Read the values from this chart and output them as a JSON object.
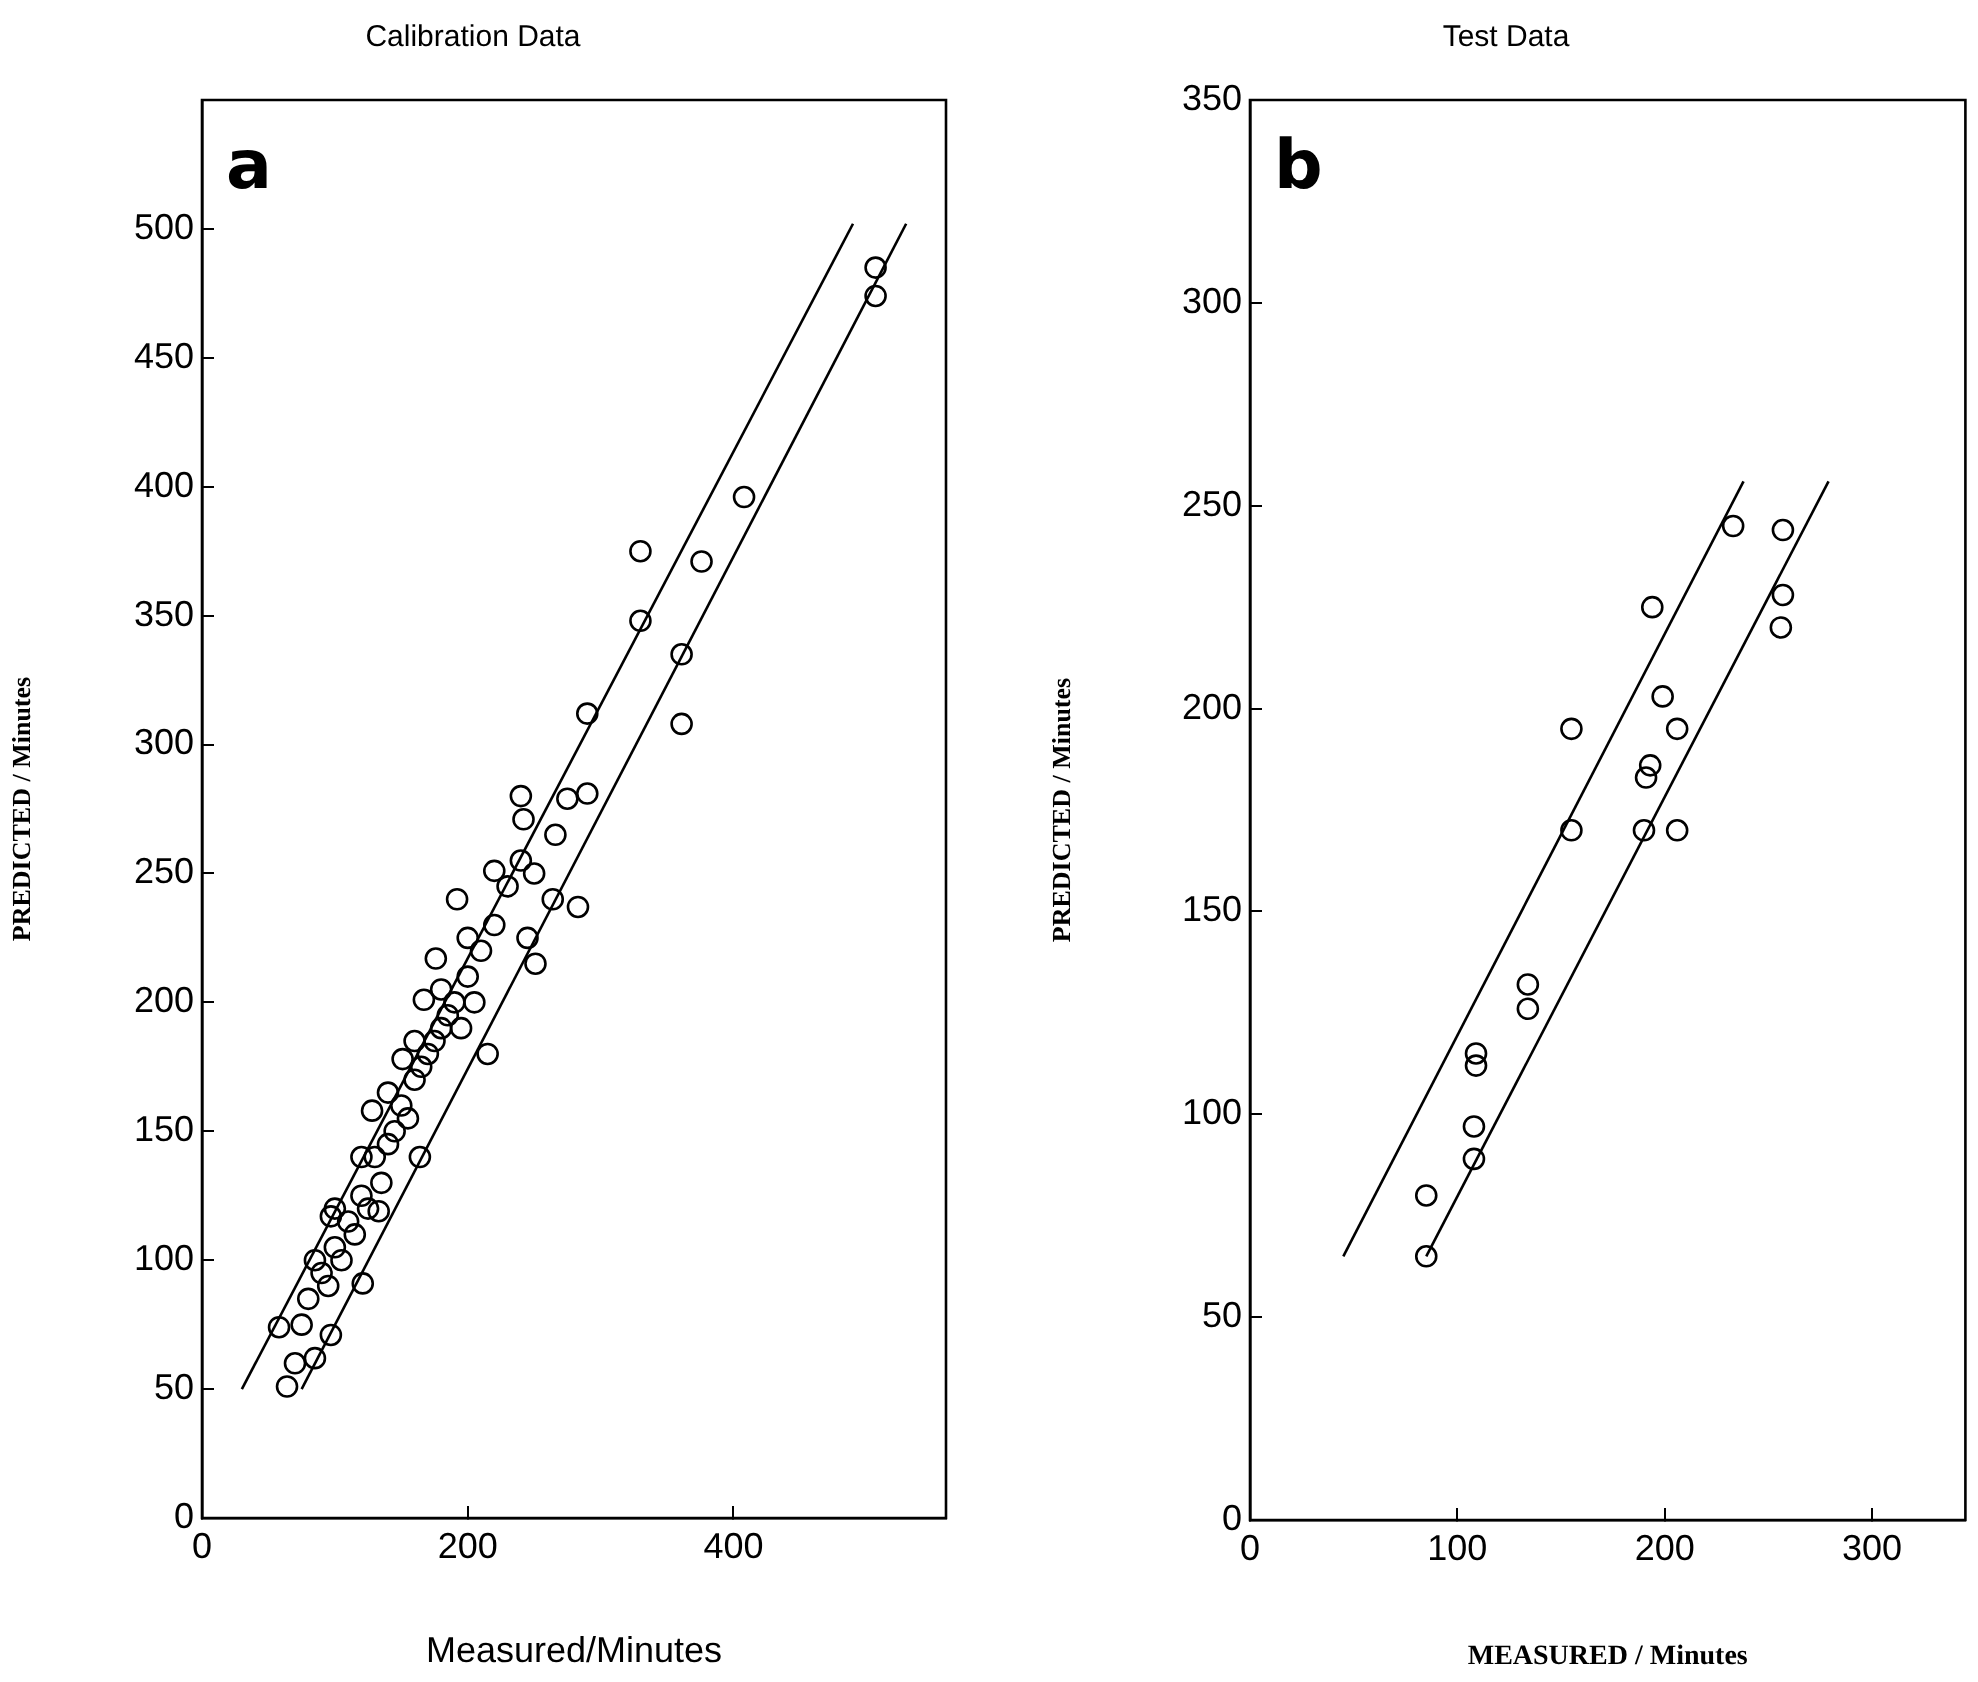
{
  "chart_data": [
    {
      "type": "scatter",
      "title": "Calibration Data",
      "xlabel": "Measured/Minutes",
      "ylabel": "PREDICTED / Minutes",
      "annotations": [
        "a"
      ],
      "xlim": [
        0,
        560
      ],
      "ylim": [
        0,
        550
      ],
      "xticks": [
        0,
        200,
        400
      ],
      "yticks": [
        0,
        50,
        100,
        150,
        200,
        250,
        300,
        350,
        400,
        450,
        500
      ],
      "series": [
        {
          "marker": "circle",
          "color": "#000000",
          "x": [
            507,
            507,
            408,
            330,
            376,
            330,
            361,
            361,
            290,
            240,
            290,
            275,
            266,
            242,
            283,
            251,
            264,
            215,
            220,
            192,
            176,
            167,
            151,
            128,
            164,
            121,
            97,
            64,
            70,
            85,
            97,
            58,
            133,
            80,
            90,
            100,
            110,
            120,
            130,
            140,
            150,
            160,
            170,
            180,
            190,
            200,
            210,
            220,
            95,
            105,
            115,
            125,
            135,
            145,
            155,
            165,
            175,
            185,
            195,
            205,
            230,
            240,
            245,
            250,
            85,
            75,
            100,
            120,
            140,
            160,
            180,
            200
          ],
          "values": [
            485,
            474,
            396,
            375,
            371,
            348,
            335,
            308,
            312,
            280,
            281,
            279,
            265,
            271,
            237,
            215,
            240,
            180,
            251,
            240,
            217,
            201,
            178,
            158,
            140,
            91,
            117,
            51,
            60,
            62,
            71,
            74,
            119,
            85,
            95,
            105,
            115,
            125,
            140,
            145,
            160,
            170,
            180,
            190,
            200,
            210,
            220,
            230,
            90,
            100,
            110,
            120,
            130,
            150,
            155,
            175,
            185,
            195,
            190,
            200,
            245,
            255,
            225,
            250,
            100,
            75,
            120,
            140,
            165,
            185,
            205,
            225
          ]
        },
        {
          "type": "line",
          "color": "#000000",
          "x": [
            30,
            490
          ],
          "values": [
            50,
            502
          ]
        },
        {
          "type": "line",
          "color": "#000000",
          "x": [
            75,
            530
          ],
          "values": [
            50,
            502
          ]
        }
      ]
    },
    {
      "type": "scatter",
      "title": "Test Data",
      "xlabel": "MEASURED / Minutes",
      "ylabel": "PREDICTED / Minutes",
      "annotations": [
        "b"
      ],
      "xlim": [
        0,
        345
      ],
      "ylim": [
        0,
        350
      ],
      "xticks": [
        0,
        100,
        200,
        300
      ],
      "yticks": [
        0,
        50,
        100,
        150,
        200,
        250,
        300,
        350
      ],
      "series": [
        {
          "marker": "circle",
          "color": "#000000",
          "x": [
            233,
            257,
            257,
            256,
            194,
            199,
            206,
            155,
            193,
            191,
            155,
            190,
            206,
            134,
            134,
            109,
            109,
            108,
            108,
            85,
            85
          ],
          "values": [
            245,
            244,
            228,
            220,
            225,
            203,
            195,
            195,
            186,
            183,
            170,
            170,
            170,
            132,
            126,
            115,
            112,
            97,
            89,
            80,
            65
          ]
        },
        {
          "type": "line",
          "color": "#000000",
          "x": [
            45,
            238
          ],
          "values": [
            65,
            256
          ]
        },
        {
          "type": "line",
          "color": "#000000",
          "x": [
            85,
            279
          ],
          "values": [
            65,
            256
          ]
        }
      ]
    }
  ]
}
